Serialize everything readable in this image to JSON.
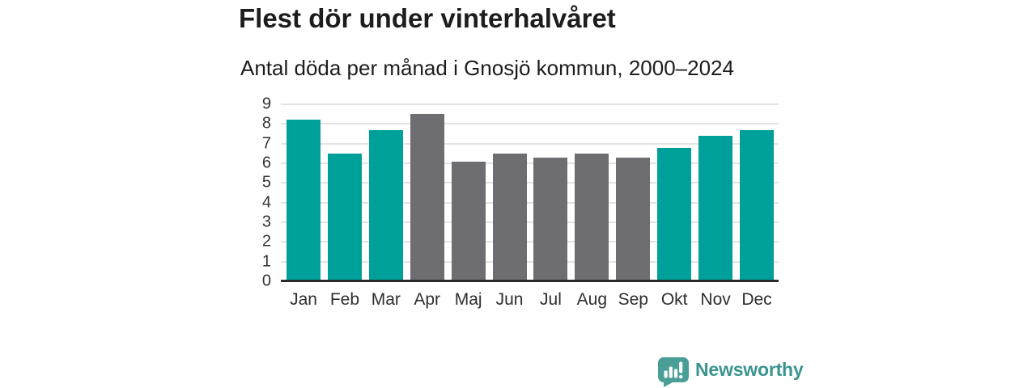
{
  "header": {
    "title": "Flest dör under vinterhalvåret",
    "subtitle": "Antal döda per månad i Gnosjö kommun, 2000–2024"
  },
  "chart_data": {
    "type": "bar",
    "title": "Flest dör under vinterhalvåret",
    "subtitle": "Antal döda per månad i Gnosjö kommun, 2000–2024",
    "categories": [
      "Jan",
      "Feb",
      "Mar",
      "Apr",
      "Maj",
      "Jun",
      "Jul",
      "Aug",
      "Sep",
      "Okt",
      "Nov",
      "Dec"
    ],
    "values": [
      8.2,
      6.5,
      7.7,
      8.5,
      6.1,
      6.5,
      6.3,
      6.5,
      6.3,
      6.8,
      7.4,
      7.7
    ],
    "bar_seasons": [
      "winter",
      "winter",
      "winter",
      "summer",
      "summer",
      "summer",
      "summer",
      "summer",
      "summer",
      "winter",
      "winter",
      "winter"
    ],
    "ylim": [
      0,
      9
    ],
    "yticks": [
      0,
      1,
      2,
      3,
      4,
      5,
      6,
      7,
      8,
      9
    ],
    "grid": true,
    "legend": "none",
    "colors": {
      "winter_bar": "#00a09a",
      "summer_bar": "#6e6e72",
      "gridline": "#e3e3e3",
      "axis_line": "#2b2b2b",
      "tick_label": "#333333"
    }
  },
  "branding": {
    "wordmark": "Newsworthy",
    "logo_icon": "speech-bubble-bar-chart",
    "icon_color": "#4a9e98",
    "wordmark_color": "#3a948f"
  }
}
